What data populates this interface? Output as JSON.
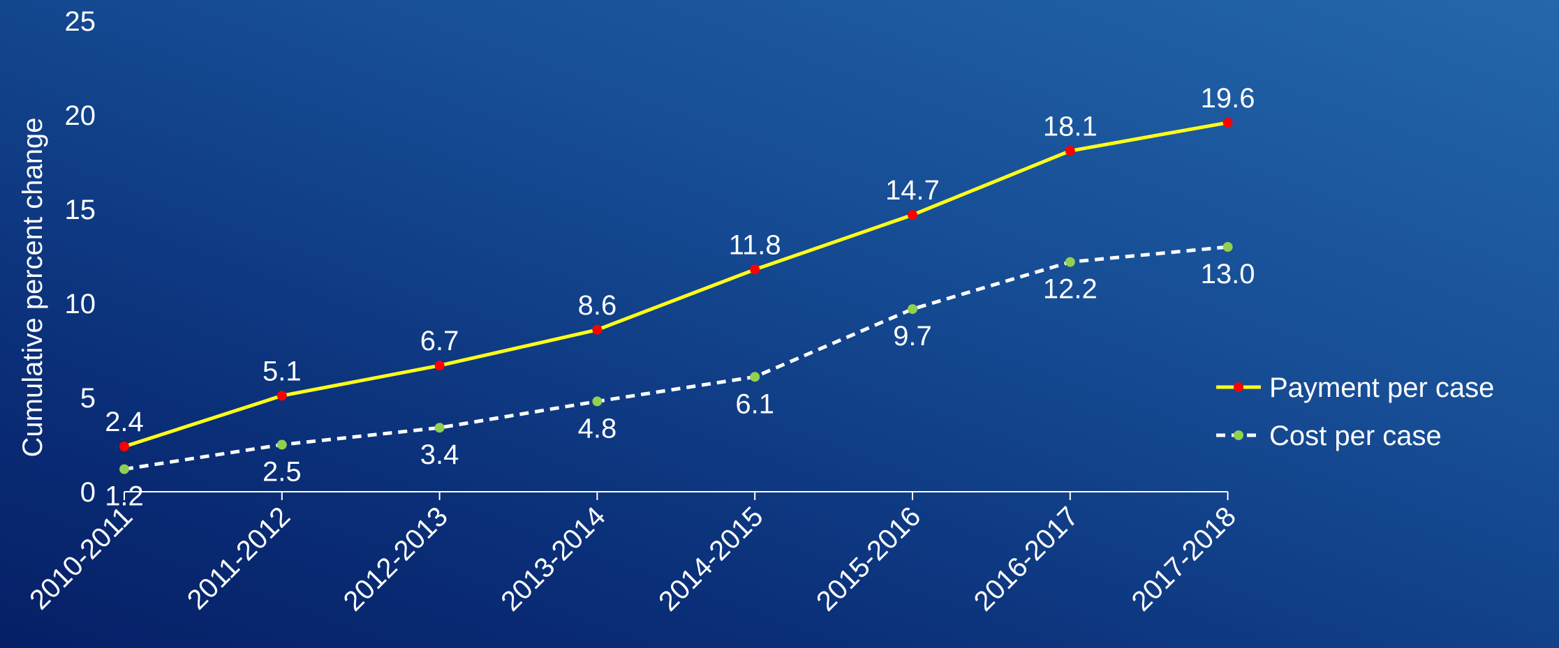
{
  "chart_data": {
    "type": "line",
    "ylabel": "Cumulative percent change",
    "xlabel": "",
    "ylim": [
      0,
      25
    ],
    "yticks": [
      0,
      5,
      10,
      15,
      20,
      25
    ],
    "grid": false,
    "legend_position": "right",
    "categories": [
      "2010-2011",
      "2011-2012",
      "2012-2013",
      "2013-2014",
      "2014-2015",
      "2015-2016",
      "2016-2017",
      "2017-2018"
    ],
    "series": [
      {
        "name": "Payment per case",
        "values": [
          2.4,
          5.1,
          6.7,
          8.6,
          11.8,
          14.7,
          18.1,
          19.6
        ],
        "labels": [
          "2.4",
          "5.1",
          "6.7",
          "8.6",
          "11.8",
          "14.7",
          "18.1",
          "19.6"
        ],
        "line_color": "#ffff1a",
        "marker_color": "#ff0000",
        "line_style": "solid",
        "label_placement": "above"
      },
      {
        "name": "Cost per case",
        "values": [
          1.2,
          2.5,
          3.4,
          4.8,
          6.1,
          9.7,
          12.2,
          13.0
        ],
        "labels": [
          "1.2",
          "2.5",
          "3.4",
          "4.8",
          "6.1",
          "9.7",
          "12.2",
          "13.0"
        ],
        "line_color": "#ffffff",
        "marker_color": "#92d050",
        "line_style": "dashed",
        "label_placement": "below"
      }
    ]
  }
}
